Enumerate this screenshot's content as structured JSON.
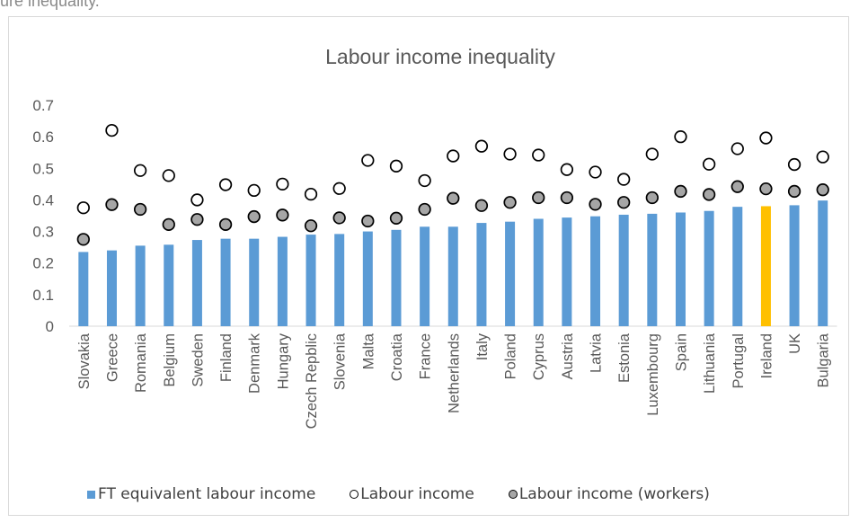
{
  "page": {
    "caption_fragment": "ure inequality."
  },
  "chart_data": {
    "type": "bar",
    "title": "Labour income inequality",
    "xlabel": "",
    "ylabel": "",
    "ylim": [
      0,
      0.7
    ],
    "yticks": [
      "0",
      "0.1",
      "0.2",
      "0.3",
      "0.4",
      "0.5",
      "0.6",
      "0.7"
    ],
    "grid": false,
    "legend_position": "bottom",
    "categories": [
      "Slovakia",
      "Greece",
      "Romania",
      "Belgium",
      "Sweden",
      "Finland",
      "Denmark",
      "Hungary",
      "Czech Repblic",
      "Slovenia",
      "Malta",
      "Croatia",
      "France",
      "Netherlands",
      "Italy",
      "Poland",
      "Cyprus",
      "Austria",
      "Latvia",
      "Estonia",
      "Luxembourg",
      "Spain",
      "Lithuania",
      "Portugal",
      "Ireland",
      "UK",
      "Bulgaria"
    ],
    "highlight_category": "Ireland",
    "colors": {
      "bar": "#5b9bd5",
      "highlight": "#ffc000",
      "marker_open": "#ffffff",
      "marker_filled": "#a6a6a6",
      "marker_edge": "#000000"
    },
    "series": [
      {
        "name": "FT equivalent labour income",
        "kind": "bar",
        "values": [
          0.235,
          0.24,
          0.255,
          0.258,
          0.273,
          0.277,
          0.277,
          0.283,
          0.29,
          0.292,
          0.3,
          0.305,
          0.315,
          0.315,
          0.327,
          0.331,
          0.34,
          0.344,
          0.348,
          0.353,
          0.356,
          0.36,
          0.365,
          0.378,
          0.38,
          0.383,
          0.398
        ]
      },
      {
        "name": "Labour income",
        "kind": "marker-open",
        "values": [
          0.375,
          0.62,
          0.493,
          0.477,
          0.4,
          0.448,
          0.43,
          0.45,
          0.418,
          0.436,
          0.525,
          0.507,
          0.461,
          0.539,
          0.57,
          0.545,
          0.542,
          0.496,
          0.488,
          0.465,
          0.545,
          0.6,
          0.513,
          0.562,
          0.596,
          0.512,
          0.536
        ]
      },
      {
        "name": "Labour income (workers)",
        "kind": "marker-filled",
        "values": [
          0.275,
          0.385,
          0.37,
          0.322,
          0.338,
          0.322,
          0.347,
          0.352,
          0.318,
          0.343,
          0.333,
          0.342,
          0.37,
          0.405,
          0.382,
          0.392,
          0.407,
          0.407,
          0.386,
          0.392,
          0.407,
          0.427,
          0.417,
          0.442,
          0.435,
          0.427,
          0.432
        ]
      }
    ]
  }
}
